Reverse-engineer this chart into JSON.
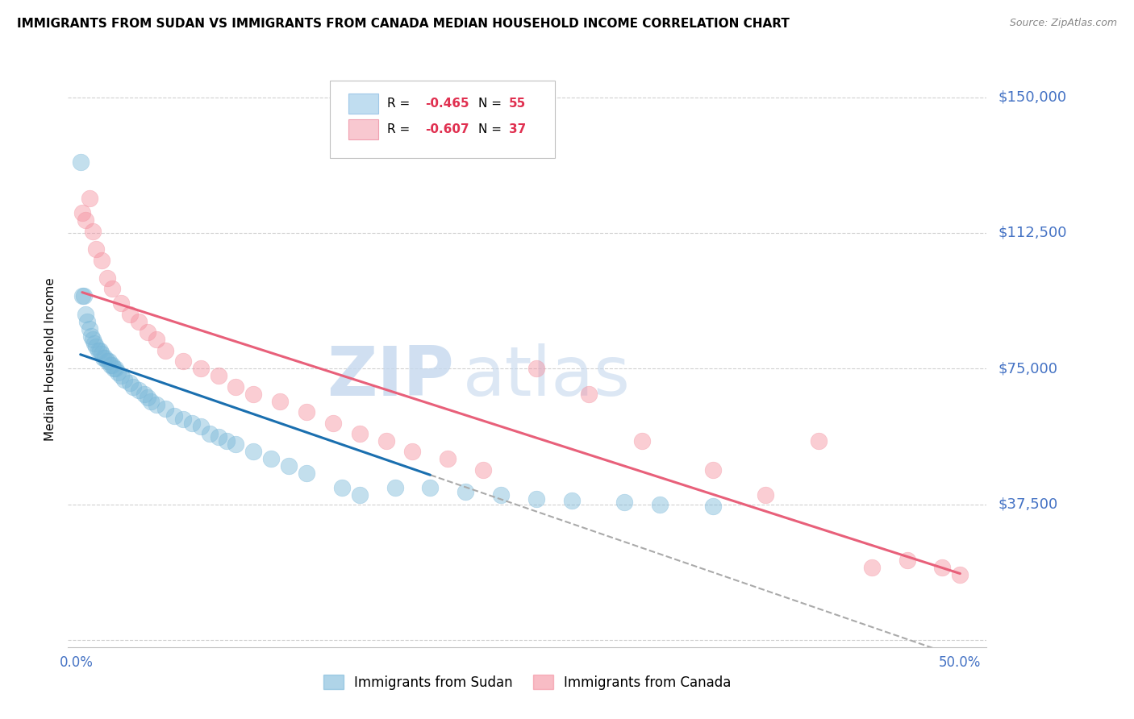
{
  "title": "IMMIGRANTS FROM SUDAN VS IMMIGRANTS FROM CANADA MEDIAN HOUSEHOLD INCOME CORRELATION CHART",
  "source": "Source: ZipAtlas.com",
  "ylabel": "Median Household Income",
  "xlim": [
    -0.005,
    0.515
  ],
  "ylim": [
    -2000,
    157000
  ],
  "yticks": [
    0,
    37500,
    75000,
    112500,
    150000
  ],
  "ytick_labels": [
    "",
    "$37,500",
    "$75,000",
    "$112,500",
    "$150,000"
  ],
  "xtick_positions": [
    0.0,
    0.1,
    0.2,
    0.3,
    0.4,
    0.5
  ],
  "xtick_labels": [
    "0.0%",
    "",
    "",
    "",
    "",
    "50.0%"
  ],
  "sudan_color": "#7ab8d9",
  "canada_color": "#f4909f",
  "line_blue": "#1a6faf",
  "line_pink": "#e8607a",
  "sudan_x": [
    0.002,
    0.003,
    0.004,
    0.005,
    0.006,
    0.007,
    0.008,
    0.009,
    0.01,
    0.011,
    0.012,
    0.013,
    0.014,
    0.015,
    0.016,
    0.017,
    0.018,
    0.019,
    0.02,
    0.021,
    0.022,
    0.023,
    0.025,
    0.027,
    0.03,
    0.032,
    0.035,
    0.038,
    0.04,
    0.042,
    0.045,
    0.05,
    0.055,
    0.06,
    0.065,
    0.07,
    0.075,
    0.08,
    0.085,
    0.09,
    0.1,
    0.11,
    0.12,
    0.13,
    0.15,
    0.16,
    0.18,
    0.2,
    0.22,
    0.24,
    0.26,
    0.28,
    0.31,
    0.33,
    0.36
  ],
  "sudan_y": [
    132000,
    95000,
    95000,
    90000,
    88000,
    86000,
    84000,
    83000,
    82000,
    81000,
    80000,
    80000,
    79000,
    78000,
    78000,
    77000,
    77000,
    76000,
    76000,
    75000,
    75000,
    74000,
    73000,
    72000,
    71000,
    70000,
    69000,
    68000,
    67000,
    66000,
    65000,
    64000,
    62000,
    61000,
    60000,
    59000,
    57000,
    56000,
    55000,
    54000,
    52000,
    50000,
    48000,
    46000,
    42000,
    40000,
    42000,
    42000,
    41000,
    40000,
    39000,
    38500,
    38000,
    37500,
    37000
  ],
  "canada_x": [
    0.003,
    0.005,
    0.007,
    0.009,
    0.011,
    0.014,
    0.017,
    0.02,
    0.025,
    0.03,
    0.035,
    0.04,
    0.045,
    0.05,
    0.06,
    0.07,
    0.08,
    0.09,
    0.1,
    0.115,
    0.13,
    0.145,
    0.16,
    0.175,
    0.19,
    0.21,
    0.23,
    0.26,
    0.29,
    0.32,
    0.36,
    0.39,
    0.42,
    0.45,
    0.47,
    0.49,
    0.5
  ],
  "canada_y": [
    118000,
    116000,
    122000,
    113000,
    108000,
    105000,
    100000,
    97000,
    93000,
    90000,
    88000,
    85000,
    83000,
    80000,
    77000,
    75000,
    73000,
    70000,
    68000,
    66000,
    63000,
    60000,
    57000,
    55000,
    52000,
    50000,
    47000,
    75000,
    68000,
    55000,
    47000,
    40000,
    55000,
    20000,
    22000,
    20000,
    18000
  ],
  "watermark_zip": "ZIP",
  "watermark_atlas": "atlas",
  "title_fontsize": 11,
  "tick_color": "#4472c4",
  "background_color": "#ffffff",
  "legend_R1": "R = ",
  "legend_V1": "-0.465",
  "legend_N1": "N = ",
  "legend_NV1": "55",
  "legend_R2": "R = ",
  "legend_V2": "-0.607",
  "legend_N2": "N = ",
  "legend_NV2": "37",
  "bottom_legend1": "Immigrants from Sudan",
  "bottom_legend2": "Immigrants from Canada"
}
